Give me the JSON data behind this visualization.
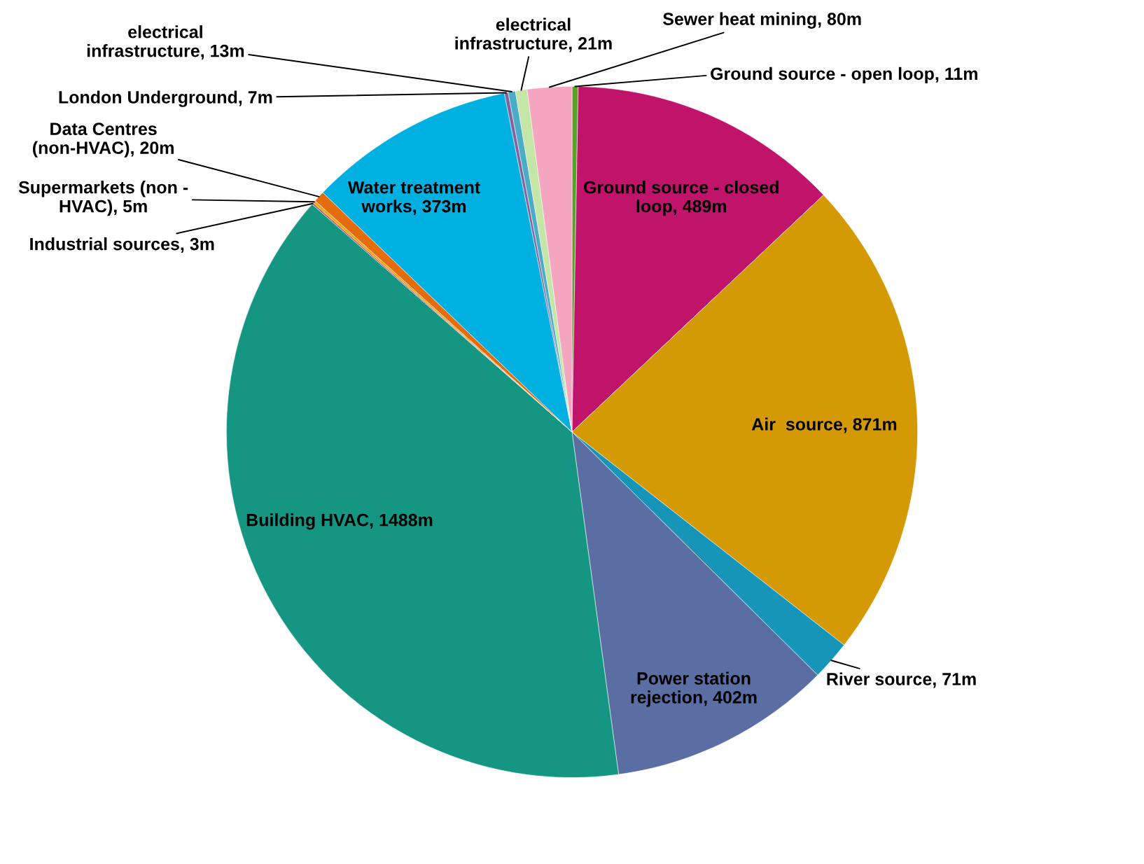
{
  "chart_data": {
    "type": "pie",
    "categories": [
      "Ground source - open loop",
      "Ground source - closed loop",
      "Air  source",
      "River source",
      "Power station rejection",
      "Building HVAC",
      "Industrial sources",
      "Supermarkets (non - HVAC)",
      "Data Centres (non-HVAC)",
      "Water treatment works",
      "London Underground",
      "electrical infrastructure",
      "electrical infrastructure",
      "Sewer heat mining"
    ],
    "value_labels": [
      "11m",
      "489m",
      "871m",
      "71m",
      "402m",
      "1488m",
      "3m",
      "5m",
      "20m",
      "373m",
      "7m",
      "13m",
      "21m",
      "80m"
    ],
    "values": [
      11,
      489,
      871,
      71,
      402,
      1488,
      3,
      5,
      20,
      373,
      7,
      13,
      21,
      80
    ],
    "colors": [
      "#5aa02c",
      "#c0136a",
      "#d49a06",
      "#1795b8",
      "#5b6ea3",
      "#149683",
      "#c0504d",
      "#f5a31a",
      "#e46c0a",
      "#00b0e0",
      "#8064a2",
      "#4bacc6",
      "#c4e6a6",
      "#f4a6c0"
    ]
  }
}
